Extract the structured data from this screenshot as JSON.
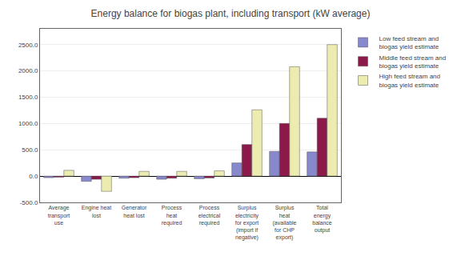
{
  "chart_data": {
    "type": "bar",
    "title": "Energy balance for biogas plant, including transport (kW average)",
    "categories": [
      "Average\ntransport\nuse",
      "Engine heat\nlost",
      "Generator\nheat lost",
      "Process\nheat\nrequired",
      "Process\nelectrical\nrequired",
      "Surplus\nelectricity\nfor export\n(import if\nnegative)",
      "Surplus\nheat\n(available\nfor CHP\nexport)",
      "Total\nenergy\nbalance\noutput"
    ],
    "series": [
      {
        "name": "Low feed stream and\nbiogas yield estimate",
        "color": "#8888cc",
        "values": [
          -30,
          -100,
          -40,
          -60,
          -50,
          250,
          470,
          460
        ]
      },
      {
        "name": "Middle feed stream and\nbiogas yield estimate",
        "color": "#8b1a4a",
        "values": [
          -20,
          -60,
          -30,
          -40,
          -35,
          600,
          1000,
          1100
        ]
      },
      {
        "name": "High feed stream and\nbiogas yield estimate",
        "color": "#ececb0",
        "values": [
          110,
          -290,
          90,
          90,
          100,
          1260,
          2080,
          2500
        ]
      }
    ],
    "ylim": [
      -500,
      2800
    ],
    "yticks": [
      {
        "value": -500,
        "label": "-500.0"
      },
      {
        "value": 0,
        "label": "0.0"
      },
      {
        "value": 500,
        "label": "500.0"
      },
      {
        "value": 1000,
        "label": "1000.0"
      },
      {
        "value": 1500,
        "label": "1500.0"
      },
      {
        "value": 2000,
        "label": "2000.0"
      },
      {
        "value": 2500,
        "label": "2500.0"
      }
    ],
    "grid": true,
    "legend": "right"
  }
}
